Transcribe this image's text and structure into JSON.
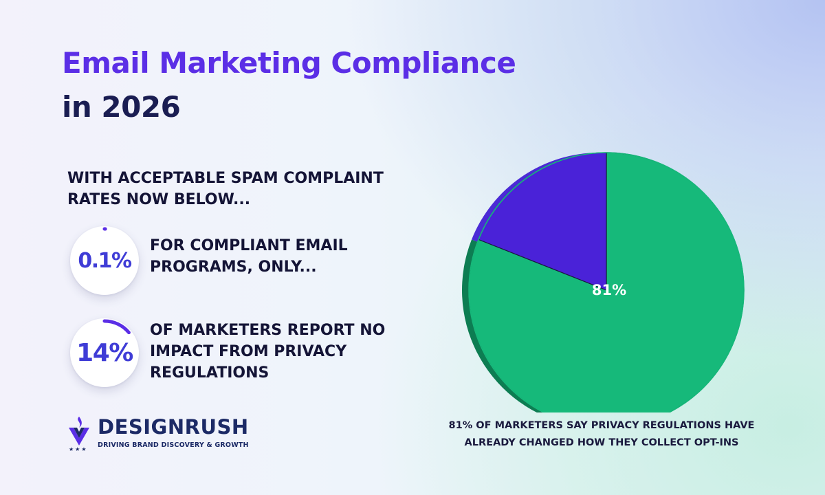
{
  "header": {
    "title_line1": "Email Marketing Compliance",
    "title_line2": "in 2026"
  },
  "intro": "WITH ACCEPTABLE SPAM COMPLAINT RATES NOW BELOW...",
  "stats": [
    {
      "value": "0.1%",
      "fraction": 0.001,
      "text": "FOR COMPLIANT EMAIL PROGRAMS, ONLY..."
    },
    {
      "value": "14%",
      "fraction": 0.14,
      "text": "OF MARKETERS REPORT NO IMPACT FROM PRIVACY REGULATIONS"
    }
  ],
  "chart_data": {
    "type": "pie",
    "title": "",
    "slices": [
      {
        "label": "81%",
        "value": 81,
        "color": "#16b97a",
        "side_color": "#0d7d52"
      },
      {
        "label": "",
        "value": 19,
        "color": "#4a22d8",
        "side_color": "#4b2ad6"
      }
    ],
    "caption": "81% OF MARKETERS SAY PRIVACY REGULATIONS HAVE ALREADY CHANGED HOW THEY COLLECT OPT-INS"
  },
  "brand": {
    "name": "DESIGNRUSH",
    "tagline": "DRIVING BRAND DISCOVERY & GROWTH",
    "stars": "★★★",
    "color": "#1c2a66",
    "accent": "#5b2ee6"
  },
  "colors": {
    "accent": "#5b2ee6",
    "dark": "#141436",
    "stat_blue": "#3f3cd6"
  }
}
